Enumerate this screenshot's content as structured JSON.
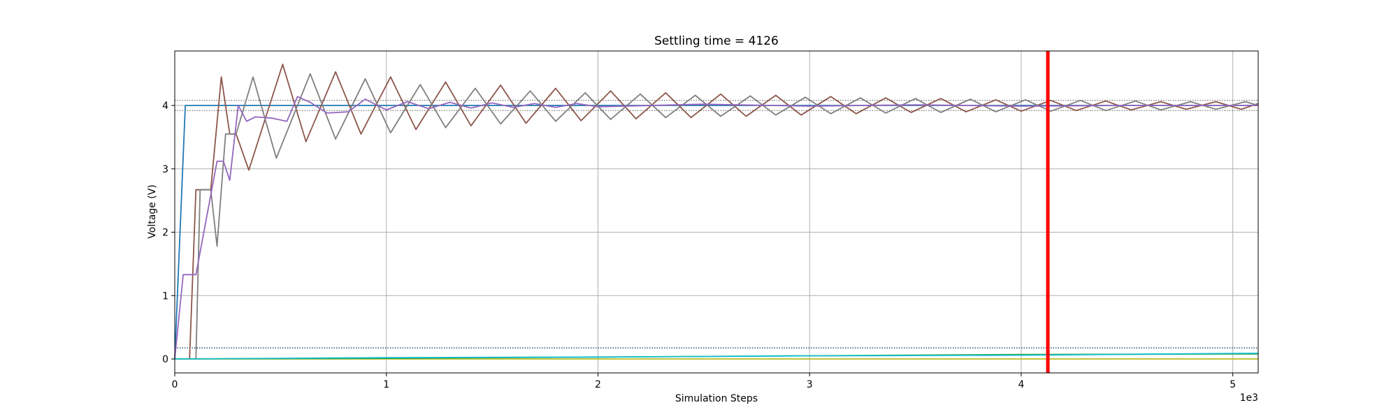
{
  "chart_data": {
    "type": "line",
    "title": "Settling time = 4126",
    "xlabel": "Simulation Steps",
    "ylabel": "Voltage (V)",
    "x_offset_text": "1e3",
    "xlim": [
      0,
      5.12
    ],
    "ylim": [
      -0.22,
      4.86
    ],
    "x_ticks": [
      0,
      1,
      2,
      3,
      4,
      5
    ],
    "y_ticks": [
      0,
      1,
      2,
      3,
      4
    ],
    "grid": true,
    "settling_marker": {
      "x": 4.126,
      "color": "#ff0000"
    },
    "reference_lines": [
      {
        "y": 4.08,
        "color": "#555555",
        "style": "dotted"
      },
      {
        "y": 3.92,
        "color": "#555555",
        "style": "dotted"
      },
      {
        "y": 0.18,
        "color": "#8c564b",
        "style": "dotted"
      },
      {
        "y": 0.17,
        "color": "#1f77b4",
        "style": "dotted"
      }
    ],
    "series": [
      {
        "color": "#1f77b4",
        "points": [
          [
            0,
            0
          ],
          [
            0.05,
            4.0
          ],
          [
            5.12,
            4.0
          ]
        ]
      },
      {
        "color": "#8c564b",
        "points": [
          [
            0,
            0
          ],
          [
            0.07,
            0
          ],
          [
            0.1,
            2.67
          ],
          [
            0.17,
            2.67
          ],
          [
            0.22,
            4.45
          ],
          [
            0.26,
            3.55
          ],
          [
            0.29,
            3.55
          ],
          [
            0.35,
            2.98
          ],
          [
            0.51,
            4.65
          ],
          [
            0.62,
            3.43
          ],
          [
            0.76,
            4.53
          ],
          [
            0.88,
            3.55
          ],
          [
            1.02,
            4.45
          ],
          [
            1.14,
            3.62
          ],
          [
            1.28,
            4.37
          ],
          [
            1.4,
            3.68
          ],
          [
            1.54,
            4.32
          ],
          [
            1.66,
            3.72
          ],
          [
            1.8,
            4.27
          ],
          [
            1.92,
            3.76
          ],
          [
            2.06,
            4.23
          ],
          [
            2.18,
            3.79
          ],
          [
            2.32,
            4.2
          ],
          [
            2.44,
            3.81
          ],
          [
            2.58,
            4.18
          ],
          [
            2.7,
            3.83
          ],
          [
            2.84,
            4.16
          ],
          [
            2.96,
            3.85
          ],
          [
            3.1,
            4.14
          ],
          [
            3.22,
            3.87
          ],
          [
            3.36,
            4.12
          ],
          [
            3.48,
            3.89
          ],
          [
            3.62,
            4.11
          ],
          [
            3.74,
            3.9
          ],
          [
            3.88,
            4.09
          ],
          [
            4.0,
            3.91
          ],
          [
            4.14,
            4.08
          ],
          [
            4.26,
            3.92
          ],
          [
            4.4,
            4.07
          ],
          [
            4.52,
            3.93
          ],
          [
            4.66,
            4.06
          ],
          [
            4.78,
            3.94
          ],
          [
            4.92,
            4.06
          ],
          [
            5.04,
            3.94
          ],
          [
            5.12,
            4.03
          ]
        ]
      },
      {
        "color": "#7f7f7f",
        "points": [
          [
            0,
            0
          ],
          [
            0.1,
            0
          ],
          [
            0.12,
            2.67
          ],
          [
            0.17,
            2.67
          ],
          [
            0.2,
            1.78
          ],
          [
            0.24,
            3.55
          ],
          [
            0.29,
            3.55
          ],
          [
            0.37,
            4.45
          ],
          [
            0.48,
            3.17
          ],
          [
            0.64,
            4.5
          ],
          [
            0.76,
            3.47
          ],
          [
            0.9,
            4.42
          ],
          [
            1.02,
            3.57
          ],
          [
            1.16,
            4.33
          ],
          [
            1.28,
            3.65
          ],
          [
            1.42,
            4.27
          ],
          [
            1.54,
            3.71
          ],
          [
            1.68,
            4.23
          ],
          [
            1.8,
            3.75
          ],
          [
            1.94,
            4.2
          ],
          [
            2.06,
            3.78
          ],
          [
            2.2,
            4.18
          ],
          [
            2.32,
            3.81
          ],
          [
            2.46,
            4.16
          ],
          [
            2.58,
            3.83
          ],
          [
            2.72,
            4.15
          ],
          [
            2.84,
            3.85
          ],
          [
            2.98,
            4.13
          ],
          [
            3.1,
            3.87
          ],
          [
            3.24,
            4.12
          ],
          [
            3.36,
            3.88
          ],
          [
            3.5,
            4.11
          ],
          [
            3.62,
            3.89
          ],
          [
            3.76,
            4.1
          ],
          [
            3.88,
            3.9
          ],
          [
            4.02,
            4.09
          ],
          [
            4.14,
            3.91
          ],
          [
            4.28,
            4.08
          ],
          [
            4.4,
            3.92
          ],
          [
            4.54,
            4.07
          ],
          [
            4.66,
            3.93
          ],
          [
            4.8,
            4.06
          ],
          [
            4.92,
            3.94
          ],
          [
            5.06,
            4.06
          ],
          [
            5.12,
            4.0
          ]
        ]
      },
      {
        "color": "#9467bd",
        "points": [
          [
            0,
            0
          ],
          [
            0.04,
            1.33
          ],
          [
            0.1,
            1.33
          ],
          [
            0.2,
            3.12
          ],
          [
            0.23,
            3.12
          ],
          [
            0.26,
            2.82
          ],
          [
            0.3,
            4.0
          ],
          [
            0.34,
            3.75
          ],
          [
            0.38,
            3.82
          ],
          [
            0.46,
            3.8
          ],
          [
            0.53,
            3.75
          ],
          [
            0.58,
            4.14
          ],
          [
            0.64,
            4.05
          ],
          [
            0.72,
            3.88
          ],
          [
            0.82,
            3.9
          ],
          [
            0.9,
            4.1
          ],
          [
            1.0,
            3.93
          ],
          [
            1.1,
            4.06
          ],
          [
            1.2,
            3.95
          ],
          [
            1.3,
            4.05
          ],
          [
            1.4,
            3.96
          ],
          [
            1.5,
            4.04
          ],
          [
            1.6,
            3.97
          ],
          [
            1.7,
            4.03
          ],
          [
            1.8,
            3.97
          ],
          [
            1.9,
            4.03
          ],
          [
            2.0,
            3.98
          ],
          [
            2.5,
            4.02
          ],
          [
            3.0,
            3.99
          ],
          [
            3.5,
            4.01
          ],
          [
            4.0,
            3.99
          ],
          [
            4.5,
            4.0
          ],
          [
            5.12,
            4.0
          ]
        ]
      },
      {
        "color": "#bcbd22",
        "points": [
          [
            0,
            0
          ],
          [
            1.0,
            0.0
          ],
          [
            2.0,
            0.0
          ],
          [
            3.0,
            0.0
          ],
          [
            4.0,
            0.0
          ],
          [
            5.12,
            0.0
          ]
        ]
      },
      {
        "color": "#2ca02c",
        "points": [
          [
            0,
            0
          ],
          [
            1.0,
            0.01
          ],
          [
            2.0,
            0.03
          ],
          [
            3.0,
            0.05
          ],
          [
            4.0,
            0.07
          ],
          [
            5.12,
            0.08
          ]
        ]
      },
      {
        "color": "#17becf",
        "points": [
          [
            0,
            0
          ],
          [
            1.0,
            0.02
          ],
          [
            2.0,
            0.03
          ],
          [
            3.0,
            0.05
          ],
          [
            4.0,
            0.06
          ],
          [
            5.12,
            0.09
          ]
        ]
      }
    ]
  }
}
